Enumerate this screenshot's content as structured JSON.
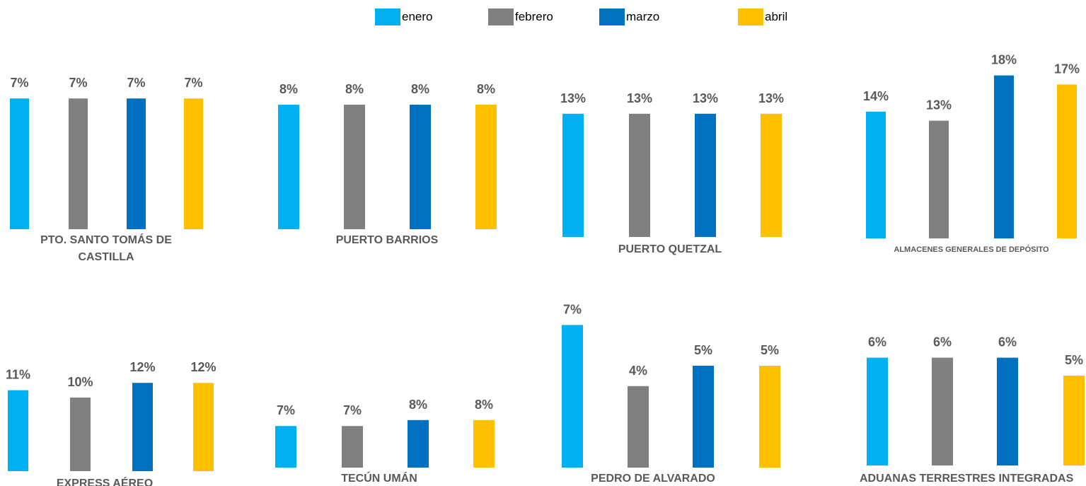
{
  "legend": [
    "enero",
    "febrero",
    "marzo",
    "abril"
  ],
  "colors": {
    "enero": "#00b0f0",
    "febrero": "#808080",
    "marzo": "#0070c0",
    "abril": "#ffc000",
    "label_text": "#595959"
  },
  "chart_data": [
    {
      "type": "bar",
      "title": "PTO. SANTO TOMÁS DE CASTILLA",
      "categories": [
        "enero",
        "febrero",
        "marzo",
        "abril"
      ],
      "values": [
        7,
        7,
        7,
        7
      ],
      "labels": [
        "7%",
        "7%",
        "7%",
        "7%"
      ]
    },
    {
      "type": "bar",
      "title": "PUERTO BARRIOS",
      "categories": [
        "enero",
        "febrero",
        "marzo",
        "abril"
      ],
      "values": [
        8,
        8,
        8,
        8
      ],
      "labels": [
        "8%",
        "8%",
        "8%",
        "8%"
      ]
    },
    {
      "type": "bar",
      "title": "PUERTO QUETZAL",
      "categories": [
        "enero",
        "febrero",
        "marzo",
        "abril"
      ],
      "values": [
        13,
        13,
        13,
        13
      ],
      "labels": [
        "13%",
        "13%",
        "13%",
        "13%"
      ]
    },
    {
      "type": "bar",
      "title": "ALMACENES GENERALES DE DEPÓSITO",
      "categories": [
        "enero",
        "febrero",
        "marzo",
        "abril"
      ],
      "values": [
        14,
        13,
        18,
        17
      ],
      "labels": [
        "14%",
        "13%",
        "18%",
        "17%"
      ]
    },
    {
      "type": "bar",
      "title": "EXPRESS AÉREO",
      "categories": [
        "enero",
        "febrero",
        "marzo",
        "abril"
      ],
      "values": [
        11,
        10,
        12,
        12
      ],
      "labels": [
        "11%",
        "10%",
        "12%",
        "12%"
      ]
    },
    {
      "type": "bar",
      "title": "TECÚN UMÁN",
      "categories": [
        "enero",
        "febrero",
        "marzo",
        "abril"
      ],
      "values": [
        7,
        7,
        8,
        8
      ],
      "labels": [
        "7%",
        "7%",
        "8%",
        "8%"
      ]
    },
    {
      "type": "bar",
      "title": "PEDRO DE ALVARADO",
      "categories": [
        "enero",
        "febrero",
        "marzo",
        "abril"
      ],
      "values": [
        7,
        4,
        5,
        5
      ],
      "labels": [
        "7%",
        "4%",
        "5%",
        "5%"
      ]
    },
    {
      "type": "bar",
      "title": "ADUANAS TERRESTRES INTEGRADAS",
      "categories": [
        "enero",
        "febrero",
        "marzo",
        "abril"
      ],
      "values": [
        6,
        6,
        6,
        5
      ],
      "labels": [
        "6%",
        "6%",
        "6%",
        "5%"
      ]
    }
  ]
}
